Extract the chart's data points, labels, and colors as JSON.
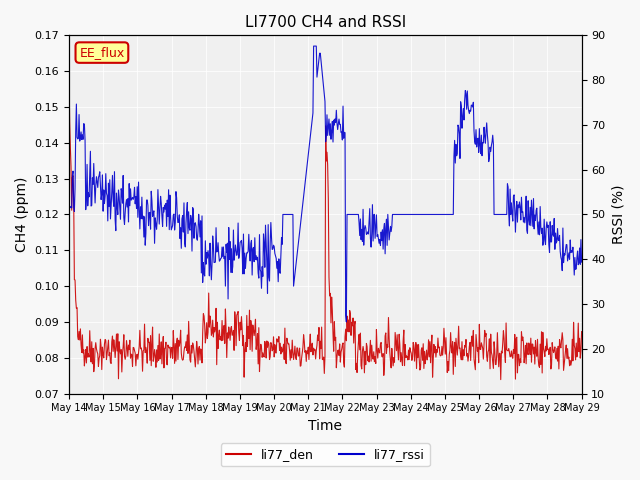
{
  "title": "LI7700 CH4 and RSSI",
  "xlabel": "Time",
  "ylabel_left": "CH4 (ppm)",
  "ylabel_right": "RSSI (%)",
  "ylim_left": [
    0.07,
    0.17
  ],
  "ylim_right": [
    10,
    90
  ],
  "yticks_left": [
    0.07,
    0.08,
    0.09,
    0.1,
    0.11,
    0.12,
    0.13,
    0.14,
    0.15,
    0.16,
    0.17
  ],
  "yticks_right": [
    10,
    20,
    30,
    40,
    50,
    60,
    70,
    80,
    90
  ],
  "xtick_labels": [
    "May 14",
    "May 15",
    "May 16",
    "May 17",
    "May 18",
    "May 19",
    "May 20",
    "May 21",
    "May 22",
    "May 23",
    "May 24",
    "May 25",
    "May 26",
    "May 27",
    "May 28",
    "May 29"
  ],
  "color_den": "#cc0000",
  "color_rssi": "#0000cc",
  "legend_labels": [
    "li77_den",
    "li77_rssi"
  ],
  "annotation_text": "EE_flux",
  "annotation_color": "#cc0000",
  "annotation_bg": "#ffff99",
  "background_color": "#e8e8e8",
  "plot_bg": "#f0f0f0"
}
